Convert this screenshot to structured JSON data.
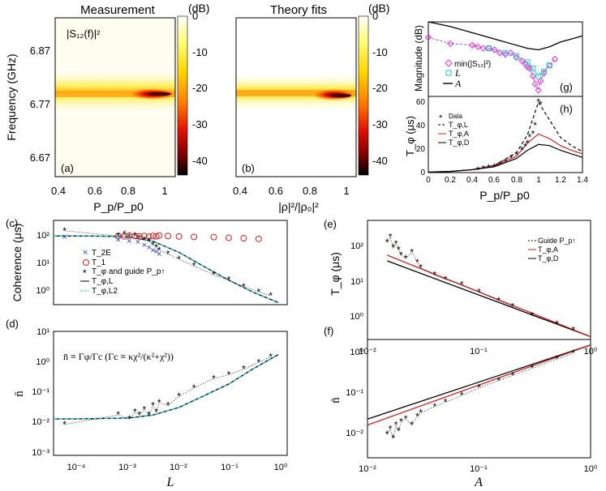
{
  "panel_a": {
    "title": "Measurement",
    "label": "(a)",
    "inset_label": "|S₁₂(f)|²",
    "ylabel": "Frequency (GHz)",
    "xlabel": "P_p/P_p0",
    "yticks": [
      "6.87",
      "6.77",
      "6.67"
    ],
    "xticks": [
      "0.4",
      "0.6",
      "0.8",
      "1"
    ]
  },
  "panel_b": {
    "title": "Theory fits",
    "label": "(b)",
    "xlabel": "|ρ|²/|ρ₀|²",
    "xticks": [
      "0.4",
      "0.6",
      "0.8",
      "1"
    ]
  },
  "colorbar": {
    "unit": "(dB)",
    "ticks": [
      "0",
      "-10",
      "-20",
      "-30",
      "-40"
    ]
  },
  "panel_g": {
    "label": "(g)",
    "ylabel": "Magnitude (dB)",
    "legend": [
      "min(|S₁₂|²)",
      "L",
      "A"
    ]
  },
  "panel_h": {
    "label": "(h)",
    "ylabel": "T_φ (μs)",
    "xlabel": "P_p/P_p0",
    "yticks": [
      "0",
      "20",
      "40",
      "60"
    ],
    "xticks": [
      "0",
      "0.2",
      "0.4",
      "0.6",
      "0.8",
      "1",
      "1.2",
      "1.4"
    ],
    "legend": [
      "Data",
      "T_φ,L",
      "T_φ,A",
      "T_φ,D"
    ]
  },
  "panel_c": {
    "label": "(c)",
    "ylabel": "Coherence (μs)",
    "legend": [
      "T_2E",
      "T_1",
      "T_φ and guide P_p↑",
      "T_φ,L",
      "T_φ,L2"
    ]
  },
  "panel_d": {
    "label": "(d)",
    "ylabel": "n̄",
    "xlabel": "L",
    "equation": "n̄ ≡ Γφ/Γc  (Γc ≡ κχ²/(κ²+χ²))"
  },
  "panel_e": {
    "label": "(e)",
    "ylabel": "T_φ (μs)",
    "legend": [
      "Guide P_p↑",
      "T_φ,A",
      "T_φ,D"
    ]
  },
  "panel_f": {
    "label": "(f)",
    "ylabel": "n̄",
    "xlabel": "A"
  },
  "log_ticks": {
    "x_cd": [
      "10⁻⁴",
      "10⁻³",
      "10⁻²",
      "10⁻¹",
      "10⁰"
    ],
    "x_ef": [
      "10⁻²",
      "10⁻¹",
      "10⁰"
    ],
    "y_c": [
      "10⁰",
      "10¹",
      "10²"
    ],
    "y_d": [
      "10⁻³",
      "10⁻²",
      "10⁻¹",
      "10⁰",
      "10¹"
    ],
    "y_e": [
      "10⁰",
      "10¹",
      "10²"
    ],
    "y_f": [
      "10⁻²",
      "10⁻¹",
      "10⁰"
    ]
  },
  "colors": {
    "red": "#d62020",
    "blue": "#2a3fd0",
    "cyan": "#1fc8d8",
    "magenta": "#e030e0",
    "black": "#000000"
  },
  "chart_data": [
    {
      "id": "a",
      "type": "heatmap",
      "title": "Measurement",
      "xlabel": "P_p/P_p0",
      "ylabel": "Frequency (GHz)",
      "xlim": [
        0.35,
        1.1
      ],
      "ylim": [
        6.62,
        6.91
      ],
      "zlim": [
        -45,
        0
      ],
      "resonance_center_ghz": 6.77,
      "min_dip_db": -42
    },
    {
      "id": "b",
      "type": "heatmap",
      "title": "Theory fits",
      "xlabel": "|ρ|²/|ρ₀|²",
      "xlim": [
        0.35,
        1.1
      ],
      "ylim": [
        6.62,
        6.91
      ],
      "zlim": [
        -45,
        0
      ],
      "resonance_center_ghz": 6.77,
      "min_dip_db": -42
    },
    {
      "id": "g",
      "type": "scatter",
      "xlim": [
        0,
        1.4
      ],
      "ylim": [
        -48,
        0
      ],
      "series": [
        {
          "name": "min(|S12|²)",
          "x": [
            0,
            0.2,
            0.4,
            0.45,
            0.5,
            0.55,
            0.6,
            0.65,
            0.7,
            0.75,
            0.8,
            0.85,
            0.88,
            0.9,
            0.92,
            0.95,
            0.97,
            1.0,
            1.02,
            1.05,
            1.1,
            1.15
          ],
          "y": [
            -10,
            -14,
            -15,
            -16,
            -17,
            -17,
            -18,
            -20,
            -21,
            -20,
            -23,
            -25,
            -27,
            -29,
            -30,
            -35,
            -40,
            -44,
            -38,
            -33,
            -28,
            -24
          ]
        },
        {
          "name": "L",
          "x": [
            0.55,
            0.7,
            0.8,
            0.9,
            0.95,
            1.0,
            1.05,
            1.1
          ],
          "y": [
            -17,
            -20,
            -22,
            -26,
            -30,
            -35,
            -32,
            -28
          ]
        },
        {
          "name": "A",
          "x": [
            0,
            0.2,
            0.4,
            0.6,
            0.8,
            0.9,
            1.0,
            1.1,
            1.2,
            1.3,
            1.4
          ],
          "y": [
            0,
            -3,
            -7,
            -11,
            -15,
            -17,
            -18,
            -16,
            -13,
            -11,
            -9
          ]
        }
      ]
    },
    {
      "id": "h",
      "type": "line",
      "xlim": [
        0,
        1.4
      ],
      "ylim": [
        0,
        65
      ],
      "series": [
        {
          "name": "Data",
          "x": [
            0.45,
            0.5,
            0.55,
            0.6,
            0.65,
            0.7,
            0.75,
            0.8,
            0.85,
            0.88,
            0.9,
            0.92,
            0.95,
            0.97,
            1.0,
            1.02
          ],
          "y": [
            2,
            3,
            4,
            5,
            7,
            9,
            12,
            15,
            19,
            22,
            25,
            30,
            33,
            40,
            60,
            58
          ]
        },
        {
          "name": "T_φ,L",
          "x": [
            0,
            0.2,
            0.4,
            0.6,
            0.8,
            0.9,
            1.0,
            1.1,
            1.2,
            1.3,
            1.4
          ],
          "y": [
            0.5,
            1,
            2.5,
            6,
            17,
            32,
            60,
            45,
            30,
            23,
            18
          ]
        },
        {
          "name": "T_φ,A",
          "x": [
            0,
            0.2,
            0.4,
            0.6,
            0.8,
            0.9,
            1.0,
            1.1,
            1.2,
            1.3,
            1.4
          ],
          "y": [
            0.5,
            1,
            2.5,
            5.5,
            14,
            25,
            33,
            29,
            23,
            19,
            16
          ]
        },
        {
          "name": "T_φ,D",
          "x": [
            0,
            0.2,
            0.4,
            0.6,
            0.8,
            0.9,
            1.0,
            1.1,
            1.2,
            1.3,
            1.4
          ],
          "y": [
            0.5,
            1,
            2.5,
            5,
            12,
            19,
            24,
            23,
            19,
            16,
            13
          ]
        }
      ]
    },
    {
      "id": "c",
      "type": "scatter",
      "xscale": "log",
      "yscale": "log",
      "xlim": [
        3e-05,
        1.5
      ],
      "ylim": [
        0.3,
        200
      ],
      "series": [
        {
          "name": "T_2E",
          "x": [
            5e-05,
            0.0006,
            0.001,
            0.0015,
            0.002,
            0.0025,
            0.003,
            0.0035,
            0.004
          ],
          "y": [
            55,
            45,
            40,
            38,
            30,
            25,
            20,
            18,
            15
          ]
        },
        {
          "name": "T_1",
          "x": [
            0.0006,
            0.0008,
            0.001,
            0.0013,
            0.0016,
            0.002,
            0.0025,
            0.003,
            0.0035,
            0.004,
            0.006,
            0.01,
            0.02,
            0.05,
            0.1,
            0.2,
            0.4
          ],
          "y": [
            60,
            58,
            62,
            60,
            58,
            60,
            57,
            60,
            58,
            62,
            60,
            58,
            56,
            55,
            52,
            50,
            48
          ]
        },
        {
          "name": "T_φ",
          "x": [
            5e-05,
            0.0006,
            0.0008,
            0.001,
            0.0013,
            0.0016,
            0.002,
            0.0025,
            0.003,
            0.0035,
            0.004,
            0.006,
            0.01,
            0.02,
            0.05,
            0.1,
            0.2,
            0.4,
            0.7
          ],
          "y": [
            90,
            60,
            70,
            55,
            60,
            50,
            45,
            40,
            30,
            25,
            20,
            15,
            10,
            6,
            3,
            2,
            1.2,
            0.8,
            0.6
          ]
        },
        {
          "name": "T_φ,L",
          "x": [
            3e-05,
            0.0001,
            0.0003,
            0.001,
            0.003,
            0.01,
            0.03,
            0.1,
            0.3,
            1
          ],
          "y": [
            60,
            60,
            59,
            55,
            40,
            17,
            6,
            2,
            0.8,
            0.35
          ]
        }
      ]
    },
    {
      "id": "d",
      "type": "scatter",
      "xscale": "log",
      "yscale": "log",
      "xlim": [
        3e-05,
        1.5
      ],
      "ylim": [
        0.001,
        10
      ],
      "series": [
        {
          "name": "n̄ data",
          "x": [
            5e-05,
            0.0006,
            0.001,
            0.0013,
            0.0016,
            0.002,
            0.0025,
            0.003,
            0.0035,
            0.004,
            0.006,
            0.01,
            0.02,
            0.05,
            0.1,
            0.2,
            0.4,
            0.7
          ],
          "y": [
            0.01,
            0.02,
            0.015,
            0.025,
            0.02,
            0.03,
            0.02,
            0.04,
            0.025,
            0.05,
            0.04,
            0.08,
            0.15,
            0.3,
            0.4,
            0.6,
            1.0,
            1.5
          ]
        },
        {
          "name": "n̄ model",
          "x": [
            3e-05,
            0.0001,
            0.001,
            0.003,
            0.01,
            0.03,
            0.1,
            0.3,
            1
          ],
          "y": [
            0.015,
            0.015,
            0.016,
            0.02,
            0.035,
            0.08,
            0.2,
            0.6,
            1.8
          ]
        }
      ]
    },
    {
      "id": "e",
      "type": "scatter",
      "xscale": "log",
      "yscale": "log",
      "xlim": [
        0.01,
        1
      ],
      "ylim": [
        0.3,
        200
      ],
      "series": [
        {
          "name": "Data",
          "x": [
            0.015,
            0.016,
            0.017,
            0.018,
            0.019,
            0.02,
            0.022,
            0.025,
            0.028,
            0.03,
            0.04,
            0.05,
            0.07,
            0.1,
            0.15,
            0.2,
            0.3,
            0.5,
            0.7
          ],
          "y": [
            60,
            80,
            45,
            55,
            40,
            30,
            25,
            35,
            20,
            15,
            10,
            8,
            6,
            4,
            2.5,
            1.8,
            1.1,
            0.7,
            0.5
          ]
        },
        {
          "name": "T_φ,A",
          "x": [
            0.015,
            1
          ],
          "y": [
            30,
            0.35
          ]
        },
        {
          "name": "T_φ,D",
          "x": [
            0.015,
            1
          ],
          "y": [
            22,
            0.35
          ]
        }
      ]
    },
    {
      "id": "f",
      "type": "scatter",
      "xscale": "log",
      "yscale": "log",
      "xlim": [
        0.01,
        1
      ],
      "ylim": [
        0.004,
        3
      ],
      "series": [
        {
          "name": "Data",
          "x": [
            0.015,
            0.016,
            0.017,
            0.018,
            0.019,
            0.02,
            0.022,
            0.025,
            0.028,
            0.03,
            0.04,
            0.05,
            0.07,
            0.1,
            0.15,
            0.2,
            0.3,
            0.5,
            0.7
          ],
          "y": [
            0.015,
            0.02,
            0.012,
            0.025,
            0.018,
            0.03,
            0.035,
            0.025,
            0.04,
            0.05,
            0.07,
            0.09,
            0.13,
            0.2,
            0.3,
            0.4,
            0.6,
            1.0,
            1.4
          ]
        },
        {
          "name": "T_φ,A",
          "x": [
            0.01,
            1
          ],
          "y": [
            0.025,
            2.2
          ]
        },
        {
          "name": "T_φ,D",
          "x": [
            0.01,
            1
          ],
          "y": [
            0.035,
            2.2
          ]
        }
      ]
    }
  ]
}
